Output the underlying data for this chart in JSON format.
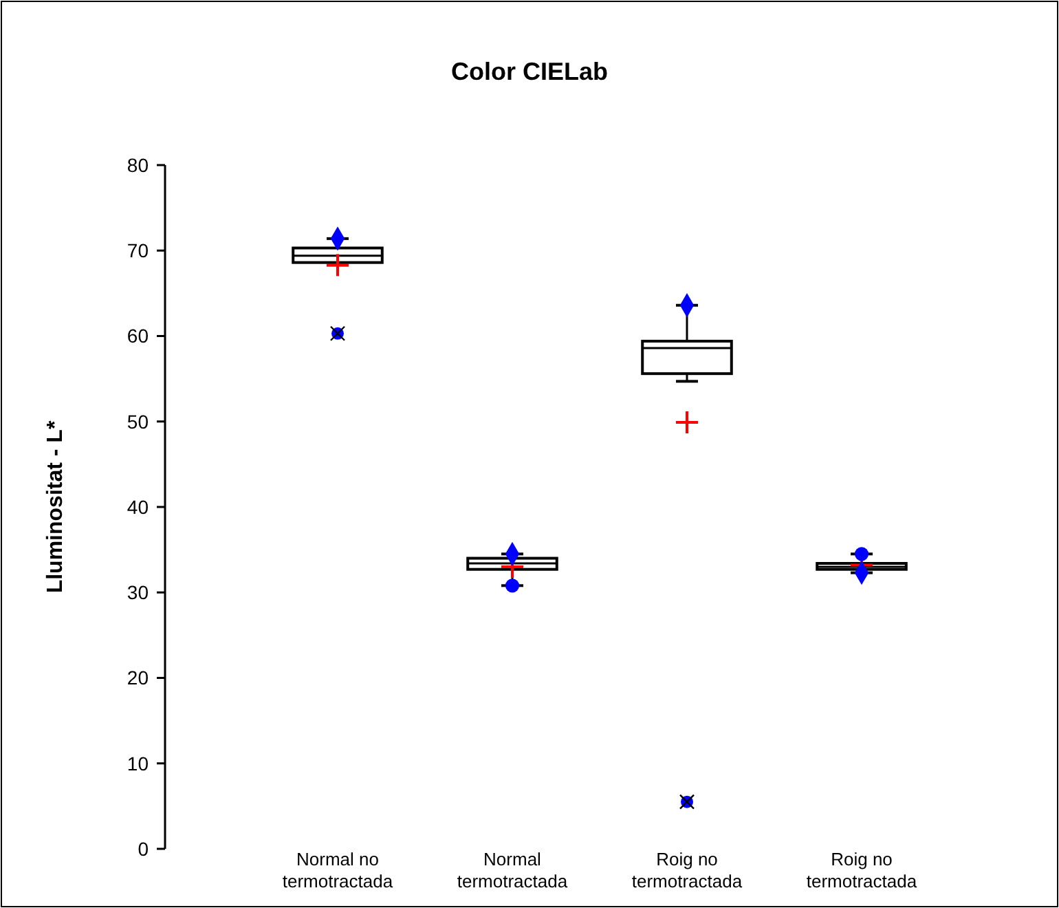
{
  "chart_data": {
    "type": "box",
    "title": "Color CIELab",
    "ylabel": "Lluminositat - L*",
    "categories": [
      "Normal no termotractada",
      "Normal termotractada",
      "Roig no termotractada",
      "Roig no termotractada"
    ],
    "boxes": [
      {
        "low": 68.3,
        "q1": 68.6,
        "median": 69.4,
        "q3": 70.3,
        "high": 71.4,
        "mean": 68.3,
        "outliers": [
          60.3
        ]
      },
      {
        "low": 30.8,
        "q1": 32.7,
        "median": 33.4,
        "q3": 34.0,
        "high": 34.5,
        "mean": 33.0
      },
      {
        "low": 54.7,
        "q1": 55.6,
        "median": 58.6,
        "q3": 59.4,
        "high": 63.6,
        "mean": 49.9,
        "outliers": [
          5.5
        ]
      },
      {
        "low": 32.3,
        "q1": 32.7,
        "median": 33.0,
        "q3": 33.4,
        "high": 34.5,
        "mean": 33.2
      }
    ],
    "series": [
      {
        "type": "scatter",
        "marker": "diamond",
        "color": "#0000ff",
        "values": [
          71.4,
          34.5,
          63.6,
          32.3
        ]
      },
      {
        "type": "scatter",
        "marker": "circle",
        "color": "#0000ff",
        "values": [
          null,
          30.8,
          null,
          34.5
        ]
      }
    ],
    "ylim": [
      0,
      80
    ],
    "yticks": [
      0,
      10,
      20,
      30,
      40,
      50,
      60,
      70,
      80
    ]
  }
}
